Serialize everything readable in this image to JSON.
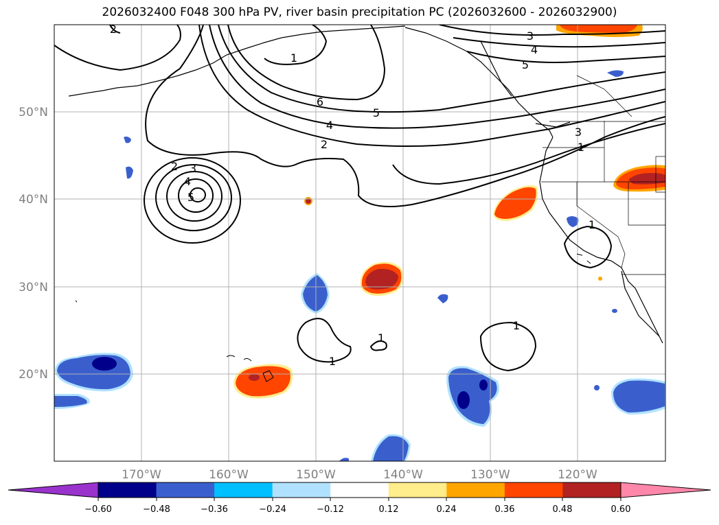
{
  "title": "2026032400 F048 300 hPa PV, river basin precipitation PC (2026032600 - 2026032900)",
  "map": {
    "lon_range": [
      -180,
      -110
    ],
    "lat_range": [
      10,
      60
    ],
    "lat_labels": [
      "50°N",
      "40°N",
      "30°N",
      "20°N"
    ],
    "lon_labels": [
      "170°W",
      "160°W",
      "150°W",
      "140°W",
      "130°W",
      "120°W"
    ],
    "pv_contour_labels": [
      "2",
      "1",
      "3",
      "4",
      "5",
      "6",
      "5",
      "4",
      "2",
      "2",
      "3",
      "4",
      "5",
      "3",
      "1",
      "1",
      "1",
      "1",
      "1"
    ]
  },
  "colorbar": {
    "tick_labels": [
      "−0.60",
      "−0.48",
      "−0.36",
      "−0.24",
      "−0.12",
      "0.12",
      "0.24",
      "0.36",
      "0.48",
      "0.60"
    ],
    "colors": [
      "#9933cc",
      "#00008b",
      "#3a5fcd",
      "#00bfff",
      "#b0e2ff",
      "#ffffff",
      "#ffec8b",
      "#ffa500",
      "#ff4500",
      "#b22222",
      "#ff88aa"
    ]
  },
  "colors": {
    "grid": "#b0b0b0",
    "contour": "#000000",
    "coast": "#000000"
  }
}
